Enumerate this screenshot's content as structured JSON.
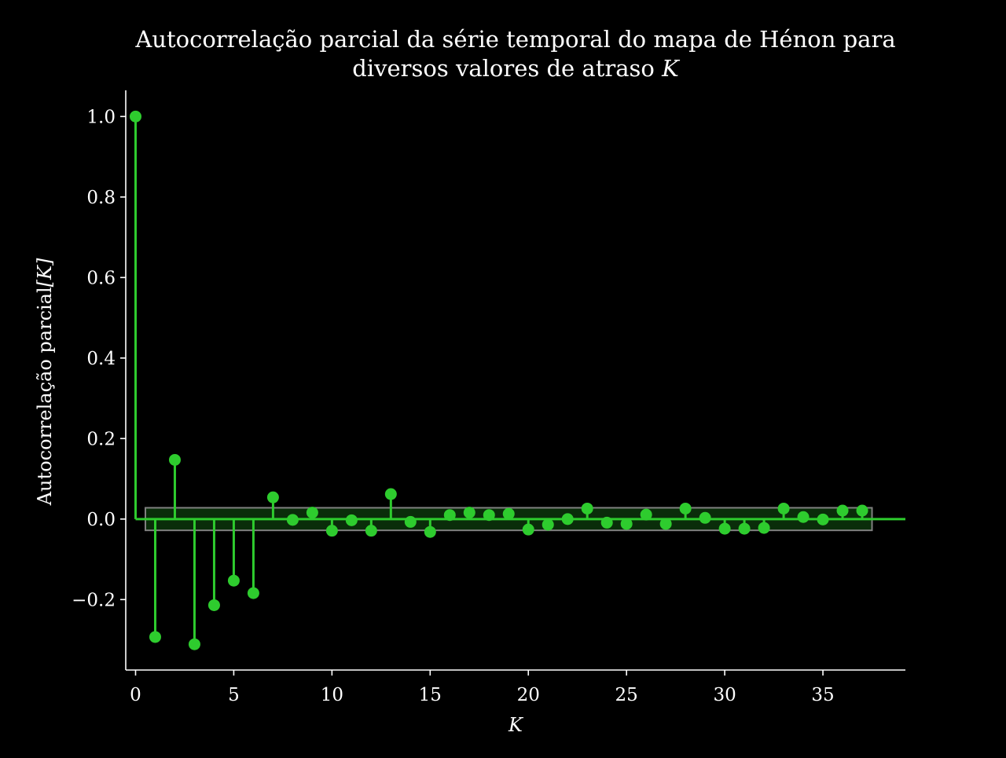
{
  "chart_data": {
    "type": "stem",
    "title_line1": "Autocorrelação parcial da série temporal do mapa de Hénon para",
    "title_line2_prefix": "diversos valores de atraso ",
    "title_line2_symbol": "K",
    "xlabel": "K",
    "ylabel_prefix": "Autocorrelação parcial",
    "ylabel_symbol": "[K]",
    "xlim": [
      -0.5,
      39.2
    ],
    "ylim": [
      -0.375,
      1.065
    ],
    "xticks": [
      0,
      5,
      10,
      15,
      20,
      25,
      30,
      35
    ],
    "xtick_labels": [
      "0",
      "5",
      "10",
      "15",
      "20",
      "25",
      "30",
      "35"
    ],
    "yticks": [
      -0.2,
      0.0,
      0.2,
      0.4,
      0.6,
      0.8,
      1.0
    ],
    "ytick_labels": [
      "−0.2",
      "0.0",
      "0.2",
      "0.4",
      "0.6",
      "0.8",
      "1.0"
    ],
    "confidence_band": {
      "x_range": [
        0.5,
        37.5
      ],
      "y_range": [
        -0.028,
        0.028
      ]
    },
    "x": [
      0,
      1,
      2,
      3,
      4,
      5,
      6,
      7,
      8,
      9,
      10,
      11,
      12,
      13,
      14,
      15,
      16,
      17,
      18,
      19,
      20,
      21,
      22,
      23,
      24,
      25,
      26,
      27,
      28,
      29,
      30,
      31,
      32,
      33,
      34,
      35,
      36,
      37
    ],
    "values": [
      1.0,
      -0.293,
      0.147,
      -0.311,
      -0.214,
      -0.153,
      -0.184,
      0.054,
      -0.002,
      0.016,
      -0.029,
      -0.003,
      -0.029,
      0.062,
      -0.007,
      -0.032,
      0.01,
      0.016,
      0.01,
      0.013,
      -0.026,
      -0.014,
      0.0,
      0.026,
      -0.009,
      -0.012,
      0.011,
      -0.012,
      0.026,
      0.003,
      -0.024,
      -0.024,
      -0.022,
      0.026,
      0.005,
      -0.001,
      0.021,
      0.021
    ],
    "colors": {
      "stem": "#2ecc2e",
      "band_fill": "#2ecc2e",
      "band_edge": "#808080",
      "axes": "#ffffff",
      "background": "#000000"
    },
    "grid": false
  }
}
